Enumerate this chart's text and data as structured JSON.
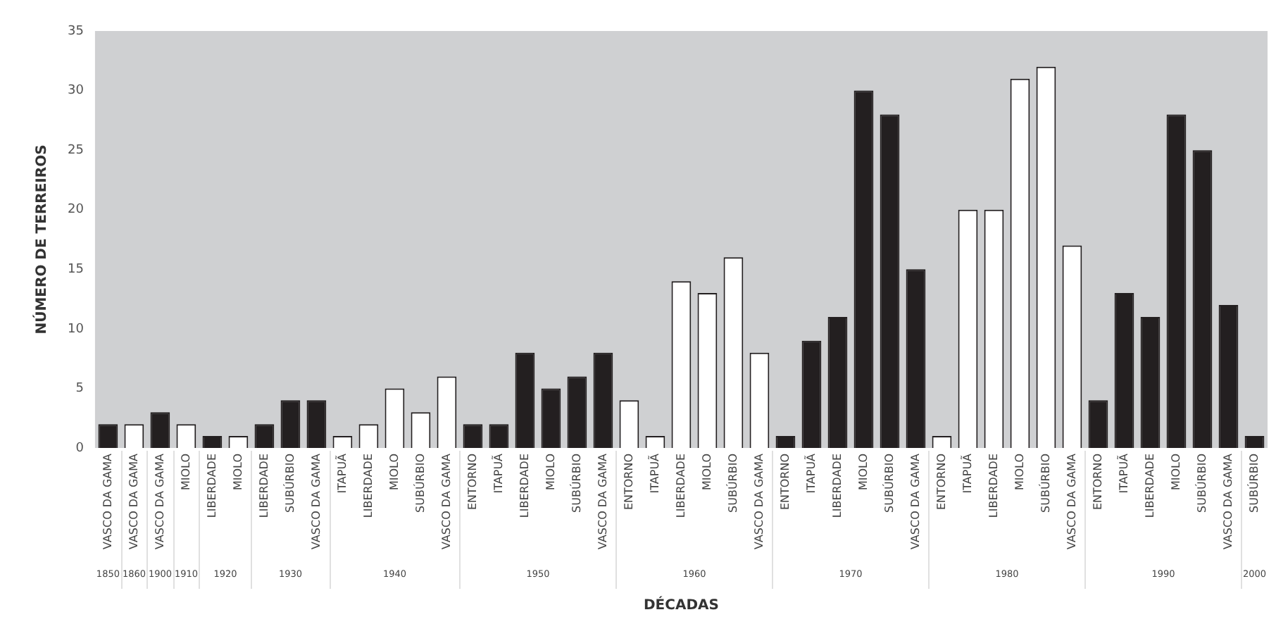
{
  "chart_data": {
    "type": "bar",
    "xlabel": "DÉCADAS",
    "ylabel": "NÚMERO DE TERREIROS",
    "categories": [
      "VASCO DA GAMA",
      "VASCO DA GAMA",
      "VASCO DA GAMA",
      "MIOLO",
      "LIBERDADE",
      "MIOLO",
      "LIBERDADE",
      "SUBÚRBIO",
      "VASCO DA GAMA",
      "ITAPUÃ",
      "LIBERDADE",
      "MIOLO",
      "SUBÚRBIO",
      "VASCO DA GAMA",
      "ENTORNO",
      "ITAPUÃ",
      "LIBERDADE",
      "MIOLO",
      "SUBÚRBIO",
      "VASCO DA GAMA",
      "ENTORNO",
      "ITAPUÃ",
      "LIBERDADE",
      "MIOLO",
      "SUBÚRBIO",
      "VASCO DA GAMA",
      "ENTORNO",
      "ITAPUÃ",
      "LIBERDADE",
      "MIOLO",
      "SUBÚRBIO",
      "VASCO DA GAMA",
      "ENTORNO",
      "ITAPUÃ",
      "LIBERDADE",
      "MIOLO",
      "SUBÚRBIO",
      "VASCO DA GAMA",
      "ENTORNO",
      "ITAPUÃ",
      "LIBERDADE",
      "MIOLO",
      "SUBÚRBIO",
      "VASCO DA GAMA",
      "SUBÚRBIO"
    ],
    "values": [
      2,
      2,
      3,
      2,
      1,
      1,
      2,
      4,
      4,
      1,
      2,
      5,
      3,
      6,
      2,
      2,
      8,
      5,
      6,
      8,
      4,
      1,
      14,
      13,
      16,
      8,
      1,
      9,
      11,
      30,
      28,
      15,
      1,
      20,
      20,
      31,
      32,
      17,
      4,
      13,
      11,
      28,
      25,
      12,
      1
    ],
    "colors": [
      "#231f20",
      "#ffffff",
      "#231f20",
      "#ffffff",
      "#231f20",
      "#ffffff",
      "#231f20",
      "#231f20",
      "#231f20",
      "#ffffff",
      "#ffffff",
      "#ffffff",
      "#ffffff",
      "#ffffff",
      "#231f20",
      "#231f20",
      "#231f20",
      "#231f20",
      "#231f20",
      "#231f20",
      "#ffffff",
      "#ffffff",
      "#ffffff",
      "#ffffff",
      "#ffffff",
      "#ffffff",
      "#231f20",
      "#231f20",
      "#231f20",
      "#231f20",
      "#231f20",
      "#231f20",
      "#ffffff",
      "#ffffff",
      "#ffffff",
      "#ffffff",
      "#ffffff",
      "#ffffff",
      "#231f20",
      "#231f20",
      "#231f20",
      "#231f20",
      "#231f20",
      "#231f20",
      "#231f20"
    ],
    "annotations": [
      "1850",
      "1860",
      "1900",
      "1910",
      "1920",
      "1930",
      "1940",
      "1950",
      "1960",
      "1970",
      "1980",
      "1990",
      "2000"
    ],
    "ylim": [
      0,
      35
    ],
    "yticks": [
      0,
      5,
      10,
      15,
      20,
      25,
      30,
      35
    ],
    "grid": false,
    "legend": false
  }
}
